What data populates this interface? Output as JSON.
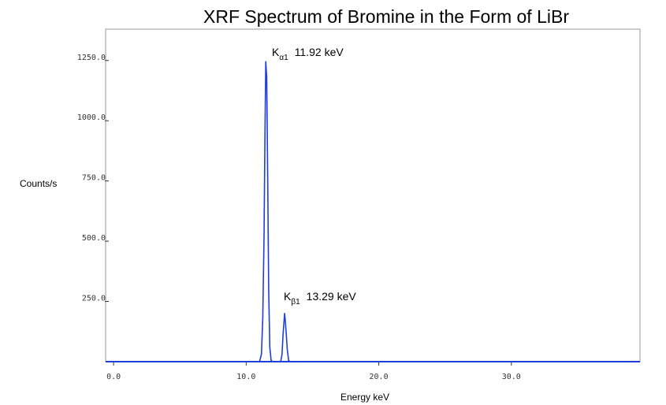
{
  "chart_data": {
    "type": "line",
    "title": "XRF Spectrum of Bromine in the Form of LiBr",
    "xlabel": "Energy keV",
    "ylabel": "Counts/s",
    "xlim": [
      -0.6,
      39.7
    ],
    "ylim": [
      0,
      1380
    ],
    "x_ticks": [
      0,
      10,
      20,
      30
    ],
    "x_tick_labels": [
      "0.0",
      "10.0",
      "20.0",
      "30.0"
    ],
    "y_ticks": [
      250,
      500,
      750,
      1000,
      1250
    ],
    "y_tick_labels": [
      "250.0",
      "500.0",
      "750.0",
      "1000.0",
      "1250.0"
    ],
    "grid": false,
    "legend": "none",
    "series": [
      {
        "color": "#1f3fd8",
        "x": [
          -0.6,
          11.0,
          11.15,
          11.25,
          11.35,
          11.42,
          11.48,
          11.55,
          11.62,
          11.7,
          11.78,
          11.88,
          12.0,
          12.6,
          12.7,
          12.78,
          12.85,
          12.9,
          12.95,
          13.02,
          13.1,
          13.2,
          13.3,
          15.0,
          39.7
        ],
        "y": [
          0,
          0,
          30,
          180,
          520,
          950,
          1245,
          1180,
          780,
          300,
          60,
          5,
          0,
          0,
          30,
          110,
          165,
          200,
          170,
          120,
          50,
          5,
          0,
          0,
          0
        ]
      }
    ],
    "annotations": [
      {
        "main": "K",
        "sub": "α1",
        "value": "11.92 keV"
      },
      {
        "main": "K",
        "sub": "β1",
        "value": "13.29 keV"
      }
    ]
  }
}
